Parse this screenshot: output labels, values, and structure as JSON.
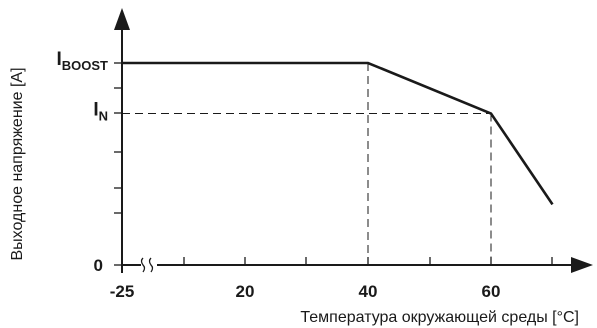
{
  "chart_data": {
    "type": "line",
    "xlabel": "Температура окружающей среды [°C]",
    "ylabel": "Выходное напряжение [A]",
    "x_ticks": [
      "-25",
      "20",
      "40",
      "60"
    ],
    "y_ticks": [
      "0"
    ],
    "axis_break": "≈",
    "y_levels": [
      {
        "main": "I",
        "sub": "BOOST"
      },
      {
        "main": "I",
        "sub": "N"
      }
    ],
    "series": [
      {
        "x": [
          -25,
          40,
          60,
          70
        ],
        "y": [
          1.0,
          1.0,
          0.75,
          0.3
        ]
      }
    ],
    "guides": [
      {
        "x": 40,
        "y": 1.0
      },
      {
        "x": 60,
        "y": 0.75
      }
    ],
    "line_color": "#1a1a1a",
    "grid": false
  }
}
